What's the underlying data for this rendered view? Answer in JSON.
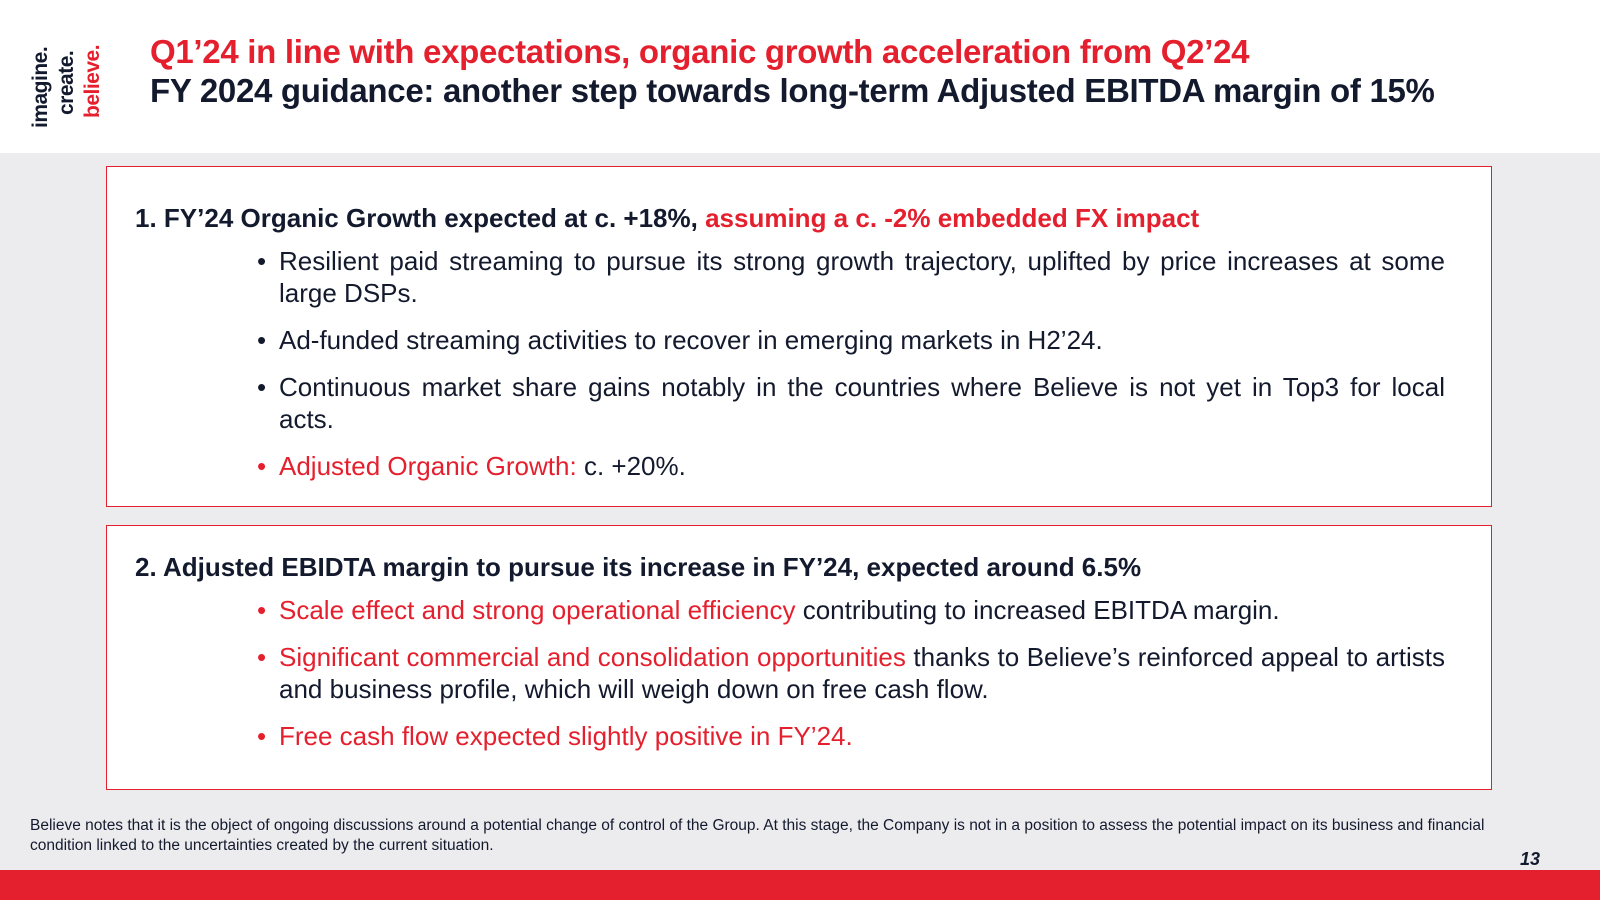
{
  "logo": {
    "line1": "imagine.",
    "line2": "create.",
    "line3": "believe."
  },
  "title": {
    "line1": "Q1’24 in line with expectations, organic growth acceleration from Q2’24",
    "line2": "FY 2024 guidance: another step towards long-term Adjusted EBITDA margin of 15%"
  },
  "section1": {
    "heading_number": "1.",
    "heading_dark": "FY’24 Organic Growth expected at c. +18%,",
    "heading_red": "assuming a c. -2% embedded FX impact",
    "bullets": [
      {
        "text": "Resilient paid streaming to pursue its strong growth trajectory, uplifted by price increases at some large DSPs."
      },
      {
        "text": "Ad-funded streaming activities to recover in emerging markets in H2’24."
      },
      {
        "text": "Continuous market share gains notably in the countries where Believe is not yet in Top3 for local acts."
      },
      {
        "red": "Adjusted Organic Growth:",
        "text": "c. +20%."
      }
    ]
  },
  "section2": {
    "heading": "2. Adjusted EBIDTA margin to pursue its increase in FY’24, expected around 6.5%",
    "bullets": [
      {
        "red": "Scale effect and strong operational efficiency",
        "text": "contributing to increased EBITDA margin."
      },
      {
        "red": "Significant commercial and consolidation opportunities",
        "text": "thanks to Believe’s reinforced appeal to artists and business profile, which will weigh down on free cash flow."
      },
      {
        "red": "Free cash flow expected slightly positive in FY’24."
      }
    ]
  },
  "bullet_symbol": "•",
  "footnote": "Believe notes that it is the object of ongoing discussions around a potential change of control of the Group. At this stage, the Company is not in a position to assess the potential impact on its business and financial condition linked to the uncertainties created by the current situation.",
  "page_number": "13",
  "colors": {
    "accent": "#e5202e",
    "text": "#141a2e",
    "background": "#ececef"
  }
}
